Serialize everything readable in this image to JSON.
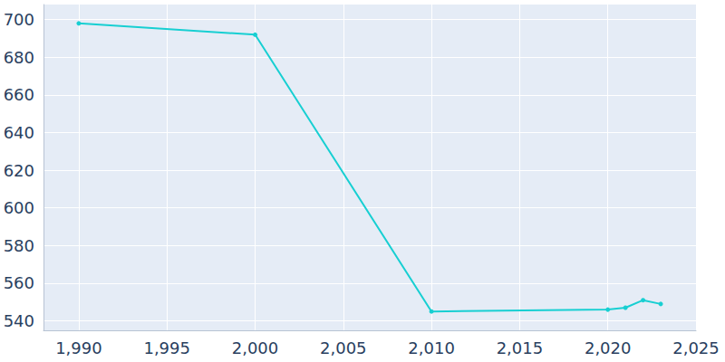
{
  "chart_data": {
    "type": "line",
    "x": [
      1990,
      2000,
      2010,
      2020,
      2021,
      2022,
      2023
    ],
    "values": [
      698,
      692,
      545,
      546,
      547,
      551,
      549
    ],
    "color": "#17cfd2",
    "marker": "circle",
    "xlim": [
      1988,
      2025
    ],
    "xticks": [
      1990,
      1995,
      2000,
      2005,
      2010,
      2015,
      2020,
      2025
    ],
    "ylim": [
      535,
      708
    ],
    "yticks": [
      540,
      560,
      580,
      600,
      620,
      640,
      660,
      680,
      700
    ],
    "grid": true
  }
}
